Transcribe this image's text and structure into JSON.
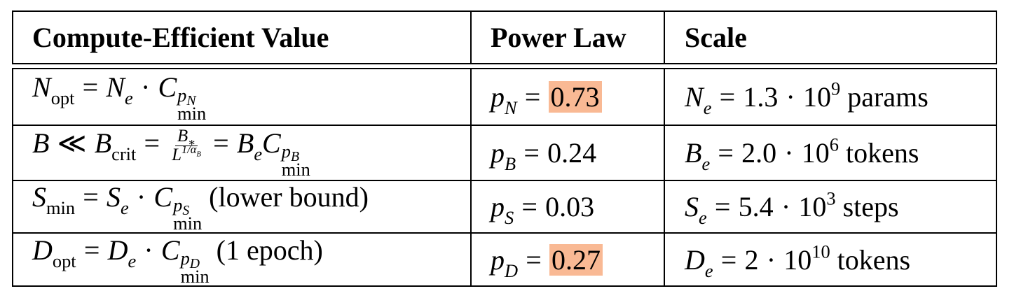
{
  "headers": {
    "col1": "Compute-Efficient Value",
    "col2": "Power Law",
    "col3": "Scale"
  },
  "rows": [
    {
      "value": {
        "sym": "N",
        "sub": "opt",
        "eq": "=",
        "base": "N",
        "base_sub": "e",
        "dot": "·",
        "c": "C",
        "c_sub": "min",
        "p": "p",
        "p_sub": "N",
        "suffix": ""
      },
      "law": {
        "p": "p",
        "p_sub": "N",
        "eq": "=",
        "val": "0.73",
        "highlight": true
      },
      "scale": {
        "sym": "N",
        "sub": "e",
        "eq": "=",
        "mant": "1.3",
        "dot": "·",
        "ten": "10",
        "exp": "9",
        "unit": "params"
      }
    },
    {
      "value": {
        "sym": "B",
        "ll": "≪",
        "crit": "B",
        "crit_sub": "crit",
        "eq": "=",
        "num": "B",
        "num_sub": "∗",
        "den": "L",
        "den_exp": "1/α",
        "den_exp_sub": "B",
        "eq2": "=",
        "base": "B",
        "base_sub": "e",
        "c": "C",
        "c_sub": "min",
        "p": "p",
        "p_sub": "B"
      },
      "law": {
        "p": "p",
        "p_sub": "B",
        "eq": "=",
        "val": "0.24",
        "highlight": false
      },
      "scale": {
        "sym": "B",
        "sub": "e",
        "eq": "=",
        "mant": "2.0",
        "dot": "·",
        "ten": "10",
        "exp": "6",
        "unit": "tokens"
      }
    },
    {
      "value": {
        "sym": "S",
        "sub": "min",
        "eq": "=",
        "base": "S",
        "base_sub": "e",
        "dot": "·",
        "c": "C",
        "c_sub": "min",
        "p": "p",
        "p_sub": "S",
        "suffix": "(lower bound)"
      },
      "law": {
        "p": "p",
        "p_sub": "S",
        "eq": "=",
        "val": "0.03",
        "highlight": false
      },
      "scale": {
        "sym": "S",
        "sub": "e",
        "eq": "=",
        "mant": "5.4",
        "dot": "·",
        "ten": "10",
        "exp": "3",
        "unit": "steps"
      }
    },
    {
      "value": {
        "sym": "D",
        "sub": "opt",
        "eq": "=",
        "base": "D",
        "base_sub": "e",
        "dot": "·",
        "c": "C",
        "c_sub": "min",
        "p": "p",
        "p_sub": "D",
        "suffix": "(1 epoch)"
      },
      "law": {
        "p": "p",
        "p_sub": "D",
        "eq": "=",
        "val": "0.27",
        "highlight": true
      },
      "scale": {
        "sym": "D",
        "sub": "e",
        "eq": "=",
        "mant": "2",
        "dot": "·",
        "ten": "10",
        "exp": "10",
        "unit": "tokens"
      }
    }
  ],
  "colors": {
    "highlight": "#f9b994",
    "rule": "#000000"
  }
}
